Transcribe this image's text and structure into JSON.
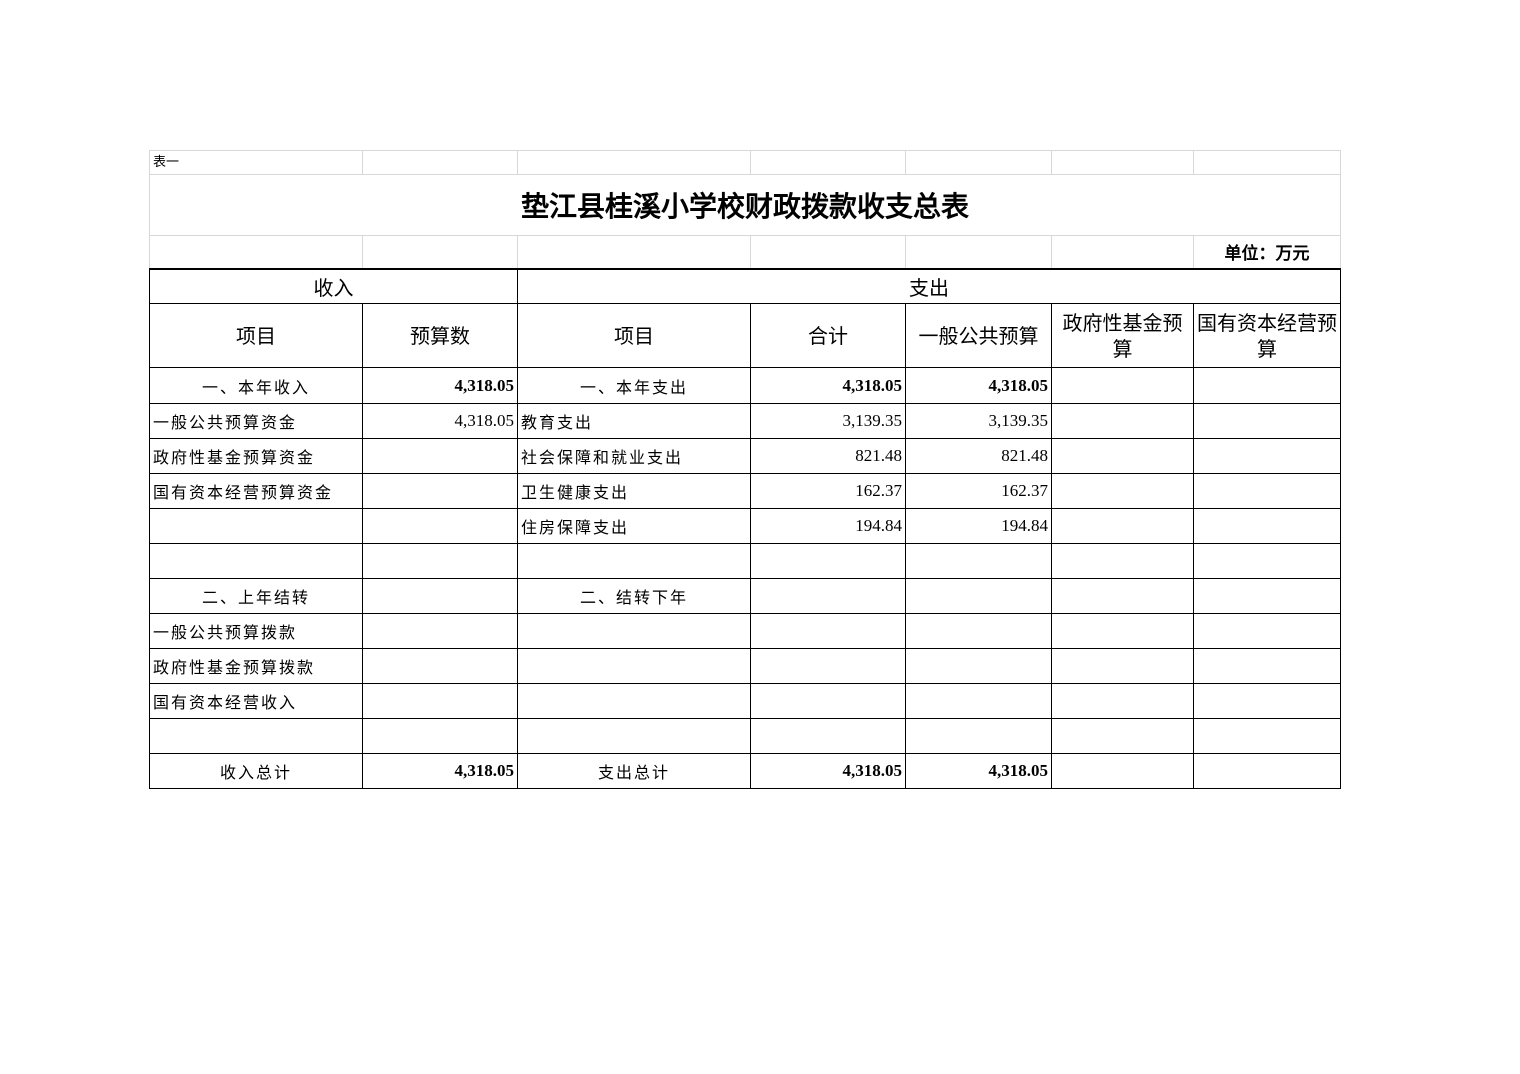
{
  "table_label": "表一",
  "title": "垫江县桂溪小学校财政拨款收支总表",
  "unit": "单位：万元",
  "sections": {
    "income": "收入",
    "expense": "支出"
  },
  "headers": [
    "项目",
    "预算数",
    "项目",
    "合计",
    "一般公共预算",
    "政府性基金预算",
    "国有资本经营预算"
  ],
  "rows": [
    {
      "type": "section",
      "cells": [
        "一、本年收入",
        "4,318.05",
        "一、本年支出",
        "4,318.05",
        "4,318.05",
        "",
        ""
      ]
    },
    {
      "type": "item",
      "cells": [
        "一般公共预算资金",
        "4,318.05",
        "教育支出",
        "3,139.35",
        "3,139.35",
        "",
        ""
      ]
    },
    {
      "type": "item",
      "cells": [
        "政府性基金预算资金",
        "",
        "社会保障和就业支出",
        "821.48",
        "821.48",
        "",
        ""
      ]
    },
    {
      "type": "item",
      "cells": [
        "国有资本经营预算资金",
        "",
        "卫生健康支出",
        "162.37",
        "162.37",
        "",
        ""
      ]
    },
    {
      "type": "item",
      "cells": [
        "",
        "",
        "住房保障支出",
        "194.84",
        "194.84",
        "",
        ""
      ]
    },
    {
      "type": "item",
      "cells": [
        "",
        "",
        "",
        "",
        "",
        "",
        ""
      ]
    },
    {
      "type": "section",
      "cells": [
        "二、上年结转",
        "",
        "二、结转下年",
        "",
        "",
        "",
        ""
      ]
    },
    {
      "type": "item",
      "cells": [
        "一般公共预算拨款",
        "",
        "",
        "",
        "",
        "",
        ""
      ]
    },
    {
      "type": "item",
      "cells": [
        "政府性基金预算拨款",
        "",
        "",
        "",
        "",
        "",
        ""
      ]
    },
    {
      "type": "item",
      "cells": [
        "国有资本经营收入",
        "",
        "",
        "",
        "",
        "",
        ""
      ]
    },
    {
      "type": "item",
      "cells": [
        "",
        "",
        "",
        "",
        "",
        "",
        ""
      ]
    },
    {
      "type": "section",
      "cells": [
        "收入总计",
        "4,318.05",
        "支出总计",
        "4,318.05",
        "4,318.05",
        "",
        ""
      ]
    }
  ]
}
